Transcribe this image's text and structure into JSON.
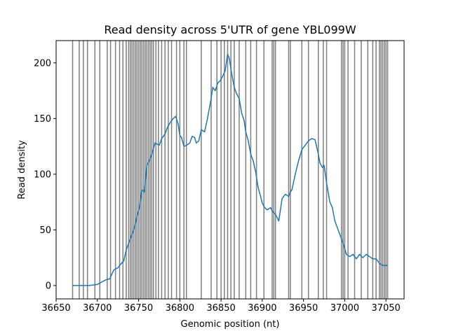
{
  "chart_data": {
    "type": "line",
    "title": "Read density across 5'UTR of gene YBL099W",
    "xlabel": "Genomic position (nt)",
    "ylabel": "Read density",
    "xlim": [
      36650,
      37072
    ],
    "ylim": [
      -12,
      220
    ],
    "xticks": [
      36650,
      36700,
      36750,
      36800,
      36850,
      36900,
      36950,
      37000,
      37050
    ],
    "yticks": [
      0,
      50,
      100,
      150,
      200
    ],
    "grid": false,
    "colors": {
      "line": "#1f77b4",
      "vlines": "#000000"
    },
    "series": [
      {
        "x": [
          36670,
          36690,
          36700,
          36705,
          36710,
          36715,
          36720,
          36725,
          36728,
          36732,
          36735,
          36738,
          36742,
          36745,
          36748,
          36751,
          36754,
          36757,
          36760,
          36763,
          36766,
          36770,
          36775,
          36778,
          36782,
          36785,
          36788,
          36792,
          36795,
          36798,
          36800,
          36802,
          36805,
          36808,
          36812,
          36815,
          36818,
          36820,
          36823,
          36826,
          36830,
          36833,
          36836,
          36838,
          36840,
          36843,
          36846,
          36849,
          36852,
          36855,
          36858,
          36860,
          36863,
          36866,
          36869,
          36872,
          36875,
          36878,
          36880,
          36883,
          36886,
          36889,
          36892,
          36895,
          36898,
          36900,
          36903,
          36906,
          36910,
          36913,
          36916,
          36920,
          36924,
          36928,
          36932,
          36934,
          36936,
          36940,
          36944,
          36948,
          36952,
          36956,
          36960,
          36964,
          36968,
          36970,
          36973,
          36975,
          36978,
          36982,
          36985,
          36988,
          36992,
          36995,
          36998,
          37002,
          37006,
          37010,
          37014,
          37018,
          37022,
          37026,
          37030,
          37034,
          37038,
          37042,
          37046,
          37052
        ],
        "y": [
          0,
          0,
          1,
          3,
          5,
          6,
          14,
          16,
          19,
          22,
          32,
          38,
          46,
          52,
          62,
          70,
          86,
          84,
          108,
          112,
          118,
          128,
          126,
          132,
          136,
          142,
          146,
          150,
          152,
          145,
          135,
          133,
          125,
          126,
          128,
          134,
          133,
          128,
          130,
          140,
          138,
          148,
          160,
          168,
          178,
          175,
          182,
          184,
          188,
          193,
          208,
          204,
          190,
          178,
          172,
          168,
          155,
          148,
          138,
          130,
          118,
          112,
          102,
          88,
          80,
          74,
          70,
          68,
          70,
          66,
          64,
          58,
          78,
          82,
          80,
          84,
          86,
          100,
          112,
          122,
          126,
          130,
          132,
          131,
          118,
          110,
          106,
          108,
          92,
          75,
          70,
          58,
          50,
          44,
          38,
          28,
          26,
          28,
          24,
          28,
          25,
          28,
          26,
          24,
          24,
          20,
          18,
          18
        ]
      }
    ],
    "vlines": [
      36670,
      36678,
      36683,
      36688,
      36697,
      36703,
      36712,
      36716,
      36722,
      36727,
      36731,
      36735,
      36738,
      36740,
      36742,
      36744,
      36746,
      36748,
      36750,
      36752,
      36754,
      36756,
      36758,
      36760,
      36762,
      36764,
      36766,
      36768,
      36771,
      36774,
      36778,
      36782,
      36786,
      36790,
      36796,
      36800,
      36805,
      36808,
      36826,
      36838,
      36845,
      36850,
      36854,
      36858,
      36862,
      36866,
      36872,
      36880,
      36886,
      36893,
      36902,
      36912,
      36914,
      36916,
      36932,
      36934,
      36948,
      36956,
      36968,
      36974,
      36978,
      36996,
      36998,
      37000,
      37004,
      37012,
      37020,
      37028,
      37034,
      37038,
      37042,
      37044,
      37046,
      37048,
      37050,
      37052
    ]
  }
}
